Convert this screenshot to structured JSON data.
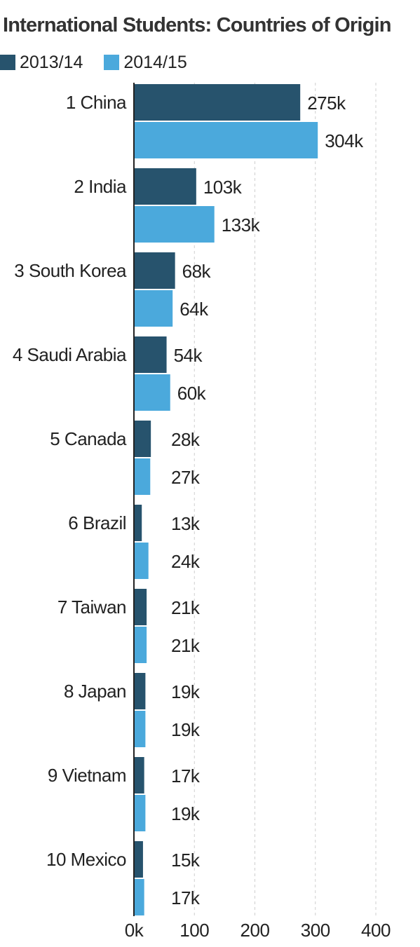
{
  "chart_data": {
    "type": "bar",
    "orientation": "horizontal",
    "title": "International Students: Countries of Origin",
    "categories": [
      "1 China",
      "2 India",
      "3 South Korea",
      "4 Saudi Arabia",
      "5 Canada",
      "6 Brazil",
      "7 Taiwan",
      "8 Japan",
      "9 Vietnam",
      "10 Mexico"
    ],
    "series": [
      {
        "name": "2013/14",
        "color": "#27536d",
        "values": [
          275,
          103,
          68,
          54,
          28,
          13,
          21,
          19,
          17,
          15
        ],
        "labels": [
          "275k",
          "103k",
          "68k",
          "54k",
          "28k",
          "13k",
          "21k",
          "19k",
          "17k",
          "15k"
        ]
      },
      {
        "name": "2014/15",
        "color": "#4ba9dc",
        "values": [
          304,
          133,
          64,
          60,
          27,
          24,
          21,
          19,
          19,
          17
        ],
        "labels": [
          "304k",
          "133k",
          "64k",
          "60k",
          "27k",
          "24k",
          "21k",
          "19k",
          "19k",
          "17k"
        ]
      }
    ],
    "x_ticks": [
      0,
      100,
      200,
      300,
      400
    ],
    "x_tick_labels": [
      "0k",
      "100",
      "200",
      "300",
      "400"
    ],
    "xlim": [
      0,
      400
    ],
    "grid": "vertical dashed",
    "legend_position": "top-left"
  }
}
